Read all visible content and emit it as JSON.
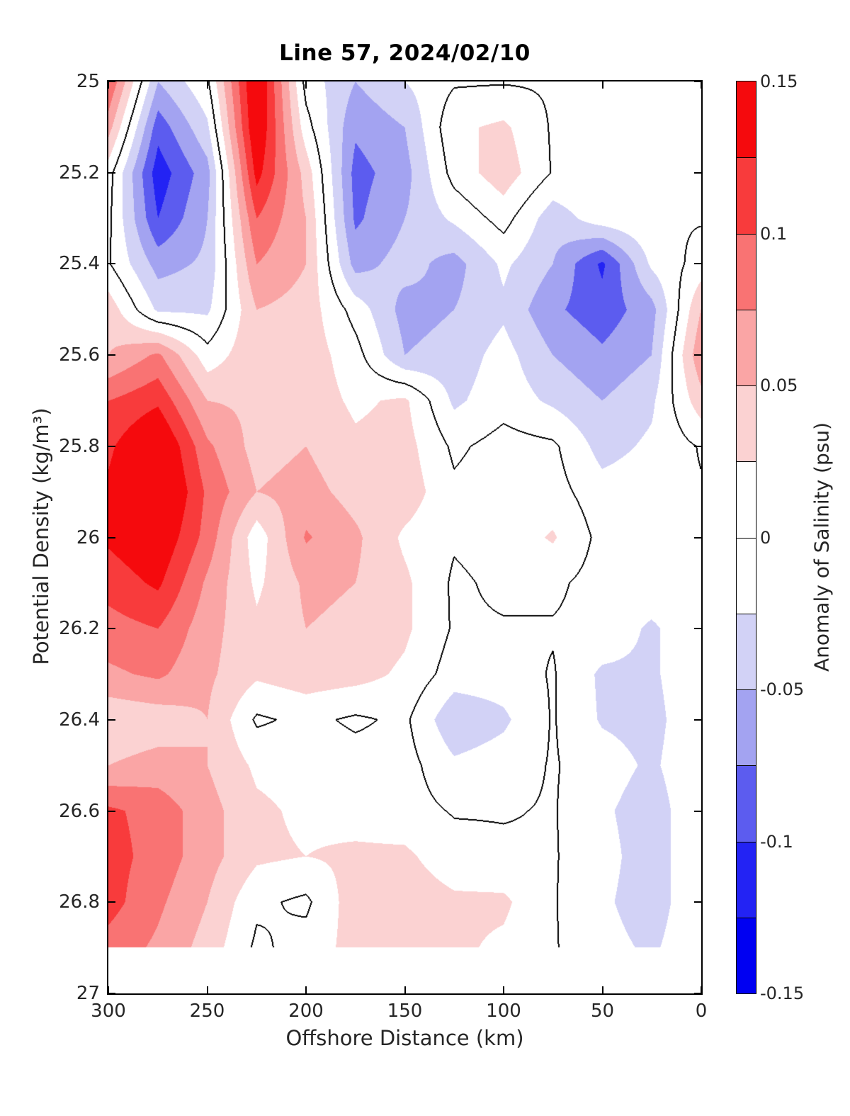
{
  "title": "Line 57, 2024/02/10",
  "x_axis": {
    "label": "Offshore Distance (km)",
    "tick_labels": [
      "300",
      "250",
      "200",
      "150",
      "100",
      "50",
      "0"
    ],
    "range": [
      300,
      0
    ]
  },
  "y_axis": {
    "label": "Potential Density (kg/m³)",
    "tick_labels": [
      "25",
      "25.2",
      "25.4",
      "25.6",
      "25.8",
      "26",
      "26.2",
      "26.4",
      "26.6",
      "26.8",
      "27"
    ],
    "range": [
      25,
      27
    ]
  },
  "colorbar": {
    "label": "Anomaly of Salinity (psu)",
    "tick_labels": [
      "0.15",
      "0.1",
      "0.05",
      "0",
      "-0.05",
      "-0.1",
      "-0.15"
    ],
    "range": [
      -0.15,
      0.15
    ],
    "levels": [
      -0.15,
      -0.125,
      -0.1,
      -0.075,
      -0.05,
      -0.025,
      0,
      0.025,
      0.05,
      0.075,
      0.1,
      0.125,
      0.15
    ],
    "colors": [
      "#0000F2",
      "#2323F4",
      "#5C5CEF",
      "#A3A3F1",
      "#D2D2F6",
      "#FFFFFF",
      "#FFFFFF",
      "#FBD2D2",
      "#FAA5A5",
      "#F97373",
      "#F83B3C",
      "#F50A0D"
    ]
  },
  "chart_data": {
    "type": "heatmap",
    "subtype": "filled-contour",
    "title": "Line 57, 2024/02/10",
    "xlabel": "Offshore Distance (km)",
    "ylabel": "Potential Density (kg/m³)",
    "zlabel": "Anomaly of Salinity (psu)",
    "x_reversed": true,
    "contour_interval": 0.025,
    "zero_contour_color": "#000000",
    "x_km": [
      300,
      275,
      250,
      225,
      200,
      175,
      150,
      125,
      100,
      75,
      50,
      25,
      0
    ],
    "y_sigma": [
      25.0,
      25.1,
      25.2,
      25.3,
      25.4,
      25.5,
      25.6,
      25.7,
      25.8,
      25.9,
      26.0,
      26.1,
      26.2,
      26.3,
      26.4,
      26.5,
      26.6,
      26.7,
      26.8,
      26.9,
      27.0
    ],
    "values": [
      [
        0.1,
        -0.05,
        -0.004,
        0.16,
        -0.01,
        -0.05,
        -0.025,
        -0.003,
        -0.002,
        -0.003,
        -0.002,
        -0.002,
        -0.002
      ],
      [
        0.06,
        -0.09,
        -0.03,
        0.155,
        0.01,
        -0.07,
        -0.05,
        0.02,
        0.03,
        -0.003,
        -0.002,
        -0.002,
        -0.002
      ],
      [
        0.01,
        -0.115,
        -0.06,
        0.135,
        0.04,
        -0.085,
        -0.06,
        0.01,
        0.04,
        -0.002,
        -0.002,
        -0.002,
        -0.002
      ],
      [
        0.005,
        -0.1,
        -0.05,
        0.1,
        0.05,
        -0.08,
        -0.05,
        -0.02,
        0.01,
        -0.04,
        -0.01,
        -0.002,
        -0.002
      ],
      [
        0.002,
        -0.06,
        -0.045,
        0.075,
        0.05,
        -0.06,
        -0.04,
        -0.06,
        -0.02,
        -0.05,
        -0.105,
        -0.02,
        0.01
      ],
      [
        0.04,
        -0.03,
        -0.03,
        0.05,
        0.04,
        -0.01,
        -0.06,
        -0.05,
        -0.03,
        -0.07,
        -0.09,
        -0.06,
        0.05
      ],
      [
        0.05,
        0.08,
        0.01,
        0.045,
        0.04,
        0.01,
        -0.05,
        -0.04,
        -0.015,
        -0.05,
        -0.07,
        -0.05,
        0.07
      ],
      [
        0.1,
        0.12,
        0.05,
        0.045,
        0.04,
        0.02,
        0.03,
        -0.03,
        -0.01,
        -0.03,
        -0.05,
        -0.03,
        0.04
      ],
      [
        0.12,
        0.16,
        0.08,
        0.04,
        0.05,
        0.03,
        0.035,
        -0.005,
        0.01,
        0.005,
        -0.035,
        -0.02,
        0.002
      ],
      [
        0.13,
        0.17,
        0.095,
        0.05,
        0.06,
        0.04,
        0.04,
        0.005,
        0.015,
        0.01,
        -0.015,
        -0.01,
        -0.002
      ],
      [
        0.13,
        0.15,
        0.09,
        0.01,
        0.078,
        0.055,
        0.02,
        0.003,
        0.01,
        0.028,
        -0.008,
        -0.003,
        -0.002
      ],
      [
        0.11,
        0.13,
        0.07,
        0.02,
        0.055,
        0.05,
        0.03,
        -0.004,
        0.005,
        0.005,
        -0.01,
        -0.005,
        -0.002
      ],
      [
        0.09,
        0.1,
        0.06,
        0.03,
        0.05,
        0.045,
        0.03,
        -0.003,
        -0.002,
        -0.002,
        -0.006,
        -0.03,
        -0.002
      ],
      [
        0.07,
        0.08,
        0.055,
        0.03,
        0.04,
        0.035,
        0.02,
        -0.012,
        -0.012,
        0.002,
        -0.03,
        -0.03,
        -0.002
      ],
      [
        0.03,
        0.035,
        0.05,
        -0.004,
        0.006,
        -0.004,
        0.005,
        -0.045,
        -0.03,
        0.002,
        -0.028,
        -0.035,
        -0.002
      ],
      [
        0.05,
        0.06,
        0.05,
        0.02,
        0.015,
        0.01,
        0.01,
        -0.02,
        -0.012,
        0.002,
        -0.012,
        -0.03,
        -0.002
      ],
      [
        0.105,
        0.09,
        0.06,
        0.03,
        0.02,
        0.015,
        0.01,
        -0.002,
        -0.002,
        0.002,
        -0.02,
        -0.04,
        -0.002
      ],
      [
        0.11,
        0.09,
        0.06,
        0.03,
        0.025,
        0.03,
        0.03,
        0.01,
        0.005,
        0.002,
        -0.015,
        -0.04,
        -0.002
      ],
      [
        0.11,
        0.08,
        0.05,
        0.005,
        -0.005,
        0.04,
        0.04,
        0.03,
        0.03,
        0.002,
        -0.02,
        -0.04,
        -0.002
      ],
      [
        0.09,
        0.07,
        0.04,
        -0.005,
        0.01,
        0.035,
        0.035,
        0.03,
        0.02,
        0.002,
        -0.015,
        -0.03,
        -0.002
      ],
      [
        null,
        null,
        null,
        null,
        null,
        null,
        null,
        null,
        null,
        null,
        null,
        null,
        null
      ]
    ]
  }
}
